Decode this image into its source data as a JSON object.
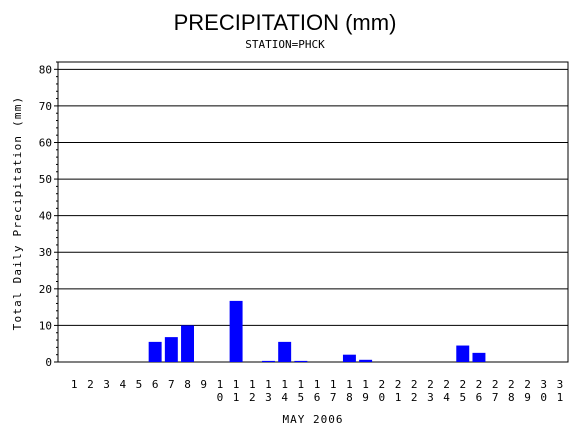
{
  "chart_data": {
    "type": "bar",
    "title": "PRECIPITATION (mm)",
    "subtitle": "STATION=PHCK",
    "xlabel": "MAY 2006",
    "ylabel": "Total Daily Precipitation (mm)",
    "ylim": [
      0,
      82
    ],
    "yticks": [
      0,
      10,
      20,
      30,
      40,
      50,
      60,
      70,
      80
    ],
    "grid": true,
    "bar_color": "#0000ff",
    "categories": [
      "1",
      "2",
      "3",
      "4",
      "5",
      "6",
      "7",
      "8",
      "9",
      "10",
      "11",
      "12",
      "13",
      "14",
      "15",
      "16",
      "17",
      "18",
      "19",
      "20",
      "21",
      "22",
      "23",
      "24",
      "25",
      "26",
      "27",
      "28",
      "29",
      "30",
      "31"
    ],
    "values": [
      0,
      0,
      0,
      0,
      0,
      5.5,
      6.8,
      10,
      0,
      0,
      16.7,
      0,
      0.3,
      5.5,
      0.3,
      0,
      0,
      2,
      0.6,
      0,
      0,
      0,
      0,
      0,
      4.5,
      2.5,
      0,
      0,
      0,
      0,
      0
    ]
  }
}
